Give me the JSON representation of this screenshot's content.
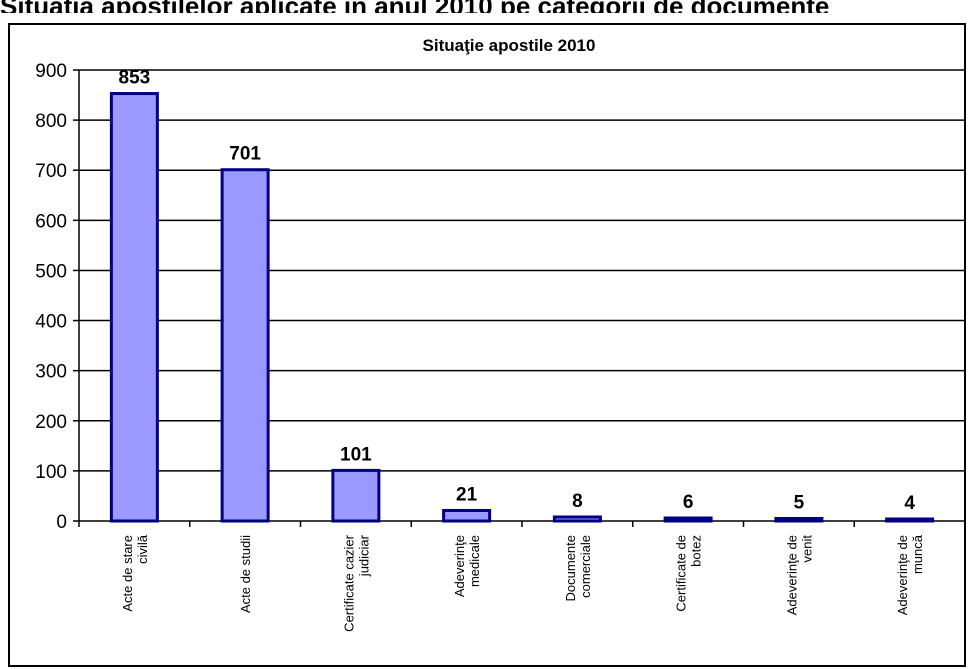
{
  "header_fragment": "Situaţia apostilelor aplicate în anul 2010 pe categorii de documente",
  "chart_data": {
    "type": "bar",
    "title": "Situaţie apostile 2010",
    "categories": [
      [
        "Acte de stare",
        "civilă"
      ],
      [
        "Acte de studii"
      ],
      [
        "Certificate cazier",
        "judiciar"
      ],
      [
        "Adeverinţe",
        "medicale"
      ],
      [
        "Documente",
        "comerciale"
      ],
      [
        "Certificate de",
        "botez"
      ],
      [
        "Adeverinţe de",
        "venit"
      ],
      [
        "Adeverinţe de",
        "muncă"
      ]
    ],
    "values": [
      853,
      701,
      101,
      21,
      8,
      6,
      5,
      4
    ],
    "ylim": [
      0,
      900
    ],
    "yticks": [
      0,
      100,
      200,
      300,
      400,
      500,
      600,
      700,
      800,
      900
    ],
    "grid": true,
    "legend": "none",
    "colors": {
      "bar_fill": "#9999ff",
      "bar_stroke": "#000080",
      "grid": "#000000",
      "frame": "#000000"
    }
  }
}
